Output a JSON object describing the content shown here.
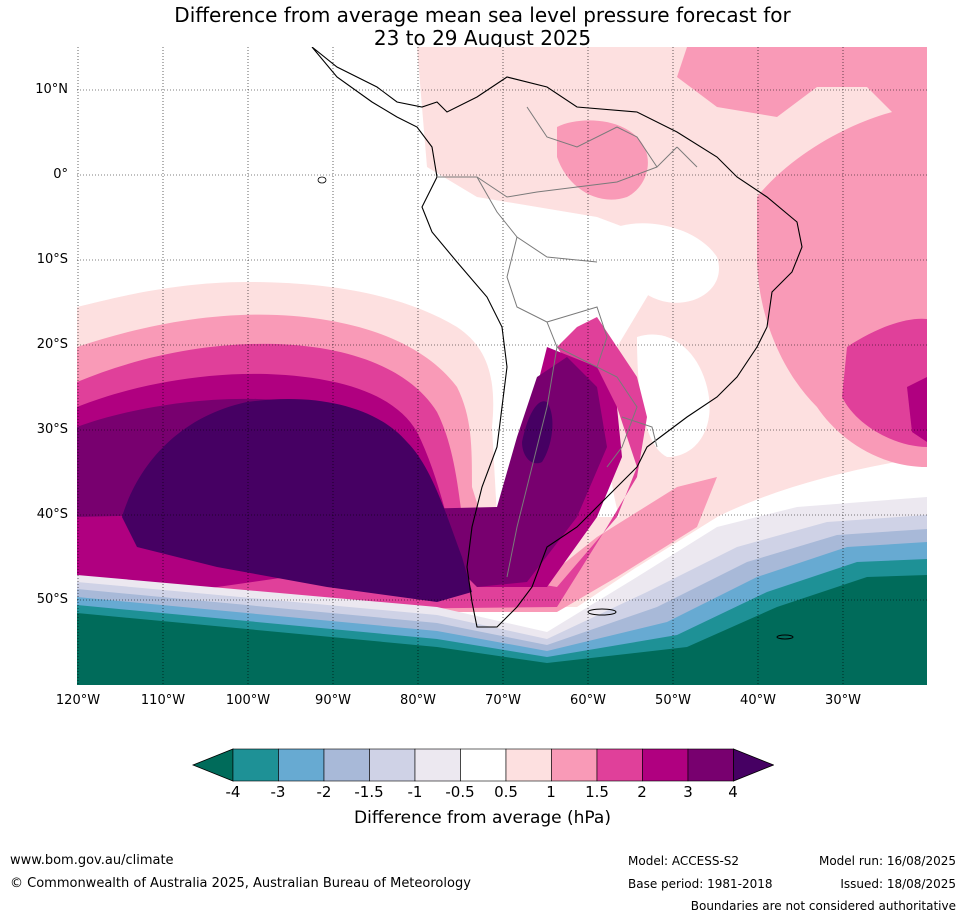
{
  "title_line1": "Difference from average mean sea level pressure forecast for",
  "title_line2": "23 to 29 August 2025",
  "lat_labels": [
    "10°N",
    "0°",
    "10°S",
    "20°S",
    "30°S",
    "40°S",
    "50°S"
  ],
  "lon_labels": [
    "120°W",
    "110°W",
    "100°W",
    "90°W",
    "80°W",
    "70°W",
    "60°W",
    "50°W",
    "40°W",
    "30°W"
  ],
  "colorbar": {
    "title": "Difference from average (hPa)",
    "tick_labels": [
      "-4",
      "-3",
      "-2",
      "-1.5",
      "-1",
      "-0.5",
      "0.5",
      "1",
      "1.5",
      "2",
      "3",
      "4"
    ],
    "colors": [
      "#006b5a",
      "#1e9196",
      "#67aad2",
      "#a8b9d8",
      "#cfd2e6",
      "#ece8f0",
      "#ffffff",
      "#fde0e0",
      "#f99ab7",
      "#e0409a",
      "#b00080",
      "#78006f",
      "#460063"
    ]
  },
  "footer": {
    "website": "www.bom.gov.au/climate",
    "copyright": "© Commonwealth of Australia 2025, Australian Bureau of Meteorology",
    "model": "Model: ACCESS-S2",
    "base_period": "Base period: 1981-2018",
    "model_run": "Model run: 16/08/2025",
    "issued": "Issued: 18/08/2025",
    "boundaries": "Boundaries are not considered authoritative"
  }
}
